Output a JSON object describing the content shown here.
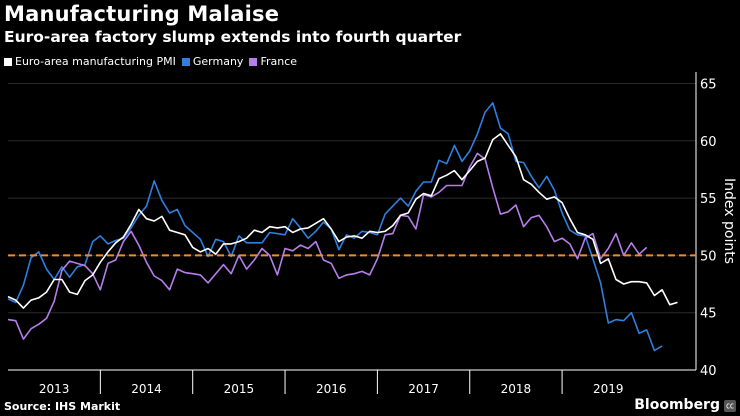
{
  "header": {
    "title": "Manufacturing Malaise",
    "subtitle": "Euro-area factory slump extends into fourth quarter"
  },
  "footer": {
    "source": "Source: IHS Markit",
    "brand": "Bloomberg",
    "badge": "㏄"
  },
  "colors": {
    "euro": "#ffffff",
    "germany": "#2f7fe0",
    "france": "#b57ee8",
    "reference": "#f28c28"
  },
  "chart_data": {
    "type": "line",
    "title": "Manufacturing Malaise",
    "subtitle": "Euro-area factory slump extends into fourth quarter",
    "ylabel": "Index points",
    "xlabel": "",
    "ylim": [
      40,
      66
    ],
    "yticks": [
      40,
      45,
      50,
      55,
      60,
      65
    ],
    "xlim": [
      2012.5,
      2019.95
    ],
    "year_labels": [
      "2013",
      "2014",
      "2015",
      "2016",
      "2017",
      "2018",
      "2019"
    ],
    "year_centers": [
      2013.0,
      2014.0,
      2015.0,
      2016.0,
      2017.0,
      2018.0,
      2019.0
    ],
    "year_boundaries": [
      2013.5,
      2014.5,
      2015.5,
      2016.5,
      2017.5,
      2018.5
    ],
    "reference_line": 50,
    "legend_position": "top-left",
    "x_start": 2012.5,
    "x_step": 0.0833333,
    "series": [
      {
        "name": "Euro-area manufacturing PMI",
        "color": "#ffffff",
        "values": [
          46.4,
          46.1,
          45.4,
          46.1,
          46.3,
          46.8,
          47.9,
          47.9,
          46.8,
          46.6,
          47.8,
          48.3,
          49.4,
          50.3,
          51.1,
          51.6,
          52.7,
          54.0,
          53.2,
          53.0,
          53.4,
          52.2,
          52.0,
          51.8,
          50.7,
          50.3,
          50.6,
          50.1,
          51.0,
          51.0,
          51.2,
          51.5,
          52.2,
          52.0,
          52.5,
          52.4,
          52.5,
          52.0,
          52.3,
          52.4,
          52.8,
          53.2,
          52.3,
          51.2,
          51.6,
          51.7,
          51.5,
          52.1,
          52.0,
          52.1,
          52.6,
          53.5,
          53.7,
          54.9,
          55.4,
          55.2,
          56.7,
          57.0,
          57.4,
          56.6,
          57.4,
          58.2,
          58.5,
          60.1,
          60.6,
          59.6,
          58.6,
          56.6,
          56.2,
          55.5,
          54.9,
          55.1,
          54.6,
          53.2,
          52.0,
          51.8,
          51.4,
          49.3,
          49.7,
          47.9,
          47.5,
          47.7,
          47.7,
          47.6,
          46.5,
          47.0,
          45.7,
          45.9
        ]
      },
      {
        "name": "Germany",
        "color": "#2f7fe0",
        "values": [
          46.2,
          45.9,
          47.4,
          49.8,
          50.3,
          48.8,
          47.9,
          49.0,
          48.1,
          49.0,
          49.2,
          51.2,
          51.7,
          51.0,
          51.3,
          51.5,
          52.4,
          53.5,
          54.3,
          56.5,
          54.8,
          53.7,
          54.0,
          52.6,
          52.0,
          51.4,
          49.9,
          51.4,
          51.2,
          49.9,
          51.7,
          51.1,
          51.1,
          51.1,
          52.0,
          51.9,
          51.8,
          53.2,
          52.4,
          51.5,
          52.1,
          52.9,
          52.3,
          50.5,
          51.8,
          51.5,
          52.1,
          52.0,
          51.8,
          53.6,
          54.3,
          55.0,
          54.3,
          55.6,
          56.4,
          56.4,
          58.3,
          58.0,
          59.6,
          58.2,
          59.1,
          60.6,
          62.5,
          63.3,
          61.1,
          60.6,
          58.2,
          58.1,
          56.9,
          55.9,
          56.9,
          55.7,
          53.7,
          52.2,
          51.8,
          51.7,
          49.7,
          47.6,
          44.1,
          44.4,
          44.3,
          45.0,
          43.2,
          43.5,
          41.7,
          42.1
        ]
      },
      {
        "name": "France",
        "color": "#b57ee8",
        "values": [
          44.4,
          44.3,
          42.7,
          43.6,
          44.0,
          44.5,
          46.0,
          48.7,
          49.5,
          49.3,
          49.1,
          48.4,
          47.0,
          49.3,
          49.6,
          51.2,
          52.1,
          50.9,
          49.4,
          48.2,
          47.8,
          47.0,
          48.8,
          48.5,
          48.4,
          48.3,
          47.6,
          48.4,
          49.2,
          48.4,
          50.0,
          48.8,
          49.6,
          50.6,
          50.0,
          48.3,
          50.6,
          50.4,
          50.9,
          50.6,
          51.2,
          49.6,
          49.3,
          48.0,
          48.3,
          48.4,
          48.6,
          48.3,
          49.7,
          51.8,
          51.9,
          53.5,
          53.4,
          52.3,
          55.3,
          55.1,
          55.5,
          56.1,
          56.1,
          56.1,
          57.7,
          58.9,
          58.4,
          55.9,
          53.6,
          53.8,
          54.4,
          52.5,
          53.3,
          53.5,
          52.5,
          51.2,
          51.5,
          51.0,
          49.7,
          51.5,
          51.9,
          49.7,
          50.6,
          51.9,
          50.0,
          51.1,
          50.1,
          50.7
        ]
      }
    ]
  }
}
